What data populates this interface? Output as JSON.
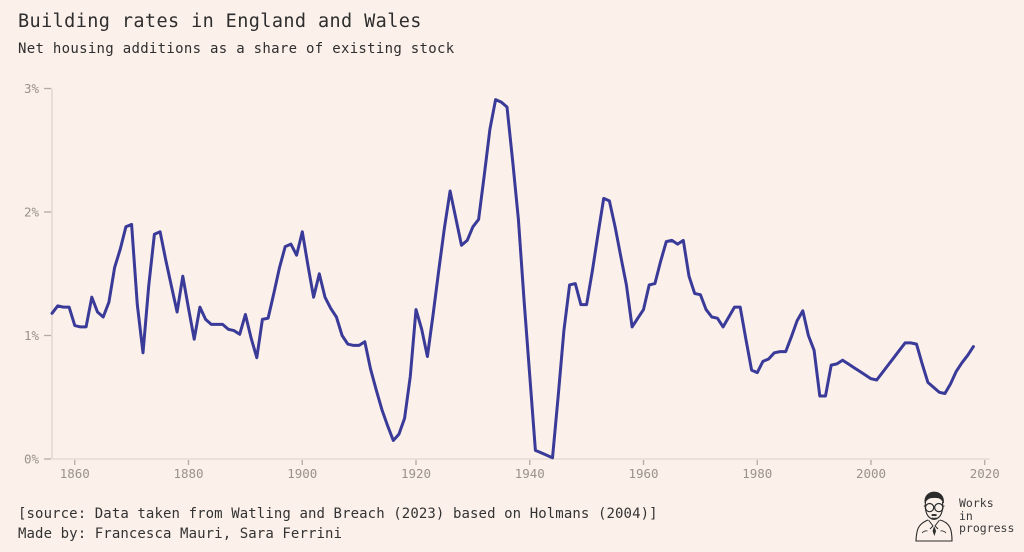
{
  "header": {
    "title": "Building rates in England and Wales",
    "subtitle": "Net housing additions as a share of existing stock"
  },
  "footer": {
    "source": "[source: Data taken from Watling and Breach (2023) based on Holmans (2004)]",
    "made_by": "Made by: Francesca Mauri, Sara Ferrini"
  },
  "logo": {
    "lines": [
      "Works",
      "in",
      "progress"
    ],
    "icon": "works-in-progress-portrait"
  },
  "colors": {
    "background": "#fbf0ea",
    "line": "#3a3a99",
    "axis_line": "#dcd1ca",
    "tick_mark": "#b5aaa2",
    "tick_label": "#9a928b",
    "text": "#2e2e2e"
  },
  "chart_data": {
    "type": "line",
    "title": "Building rates in England and Wales",
    "subtitle": "Net housing additions as a share of existing stock",
    "xlabel": "",
    "ylabel": "",
    "xlim": [
      1856,
      2020
    ],
    "ylim": [
      0,
      3
    ],
    "grid": false,
    "legend": "none",
    "x_ticks": [
      {
        "value": 1860,
        "label": "1860"
      },
      {
        "value": 1880,
        "label": "1880"
      },
      {
        "value": 1900,
        "label": "1900"
      },
      {
        "value": 1920,
        "label": "1920"
      },
      {
        "value": 1940,
        "label": "1940"
      },
      {
        "value": 1960,
        "label": "1960"
      },
      {
        "value": 1980,
        "label": "1980"
      },
      {
        "value": 2000,
        "label": "2000"
      },
      {
        "value": 2020,
        "label": "2020"
      }
    ],
    "y_ticks": [
      {
        "value": 0,
        "label": "0%"
      },
      {
        "value": 1,
        "label": "1%"
      },
      {
        "value": 2,
        "label": "2%"
      },
      {
        "value": 3,
        "label": "3%"
      }
    ],
    "series": [
      {
        "name": "Net housing additions as a share of existing stock (%)",
        "start_year": 1856,
        "end_year": 2018,
        "values": [
          1.18,
          1.24,
          1.23,
          1.23,
          1.08,
          1.07,
          1.07,
          1.31,
          1.19,
          1.15,
          1.27,
          1.55,
          1.7,
          1.88,
          1.9,
          1.25,
          0.86,
          1.4,
          1.82,
          1.84,
          1.61,
          1.4,
          1.19,
          1.48,
          1.22,
          0.97,
          1.23,
          1.13,
          1.09,
          1.09,
          1.09,
          1.05,
          1.04,
          1.01,
          1.17,
          0.98,
          0.82,
          1.13,
          1.14,
          1.34,
          1.55,
          1.72,
          1.74,
          1.65,
          1.84,
          1.57,
          1.31,
          1.5,
          1.31,
          1.22,
          1.15,
          1.0,
          0.93,
          0.92,
          0.92,
          0.95,
          0.73,
          0.56,
          0.4,
          0.27,
          0.15,
          0.2,
          0.33,
          0.67,
          1.21,
          1.05,
          0.83,
          1.17,
          1.53,
          1.87,
          2.17,
          1.95,
          1.73,
          1.77,
          1.88,
          1.94,
          2.3,
          2.67,
          2.91,
          2.89,
          2.85,
          2.41,
          1.94,
          1.28,
          0.67,
          0.07,
          0.05,
          0.03,
          0.01,
          0.51,
          1.04,
          1.41,
          1.42,
          1.25,
          1.25,
          1.52,
          1.82,
          2.11,
          2.09,
          1.88,
          1.64,
          1.41,
          1.07,
          1.14,
          1.21,
          1.41,
          1.42,
          1.6,
          1.76,
          1.77,
          1.74,
          1.77,
          1.48,
          1.34,
          1.33,
          1.21,
          1.15,
          1.14,
          1.07,
          1.15,
          1.23,
          1.23,
          0.97,
          0.72,
          0.7,
          0.79,
          0.81,
          0.86,
          0.87,
          0.87,
          0.99,
          1.12,
          1.2,
          1.0,
          0.88,
          0.51,
          0.51,
          0.76,
          0.77,
          0.8,
          0.77,
          0.74,
          0.71,
          0.68,
          0.65,
          0.64,
          0.7,
          0.76,
          0.82,
          0.88,
          0.94,
          0.94,
          0.93,
          0.77,
          0.62,
          0.58,
          0.54,
          0.53,
          0.61,
          0.71,
          0.78,
          0.84,
          0.91
        ]
      }
    ]
  }
}
